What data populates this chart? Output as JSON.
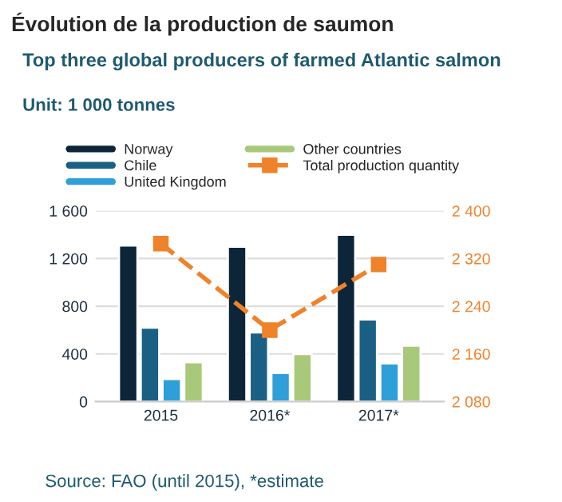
{
  "chart_data": {
    "type": "bar",
    "title": "Top three global producers of farmed Atlantic salmon",
    "subtitle": "Unit: 1 000 tonnes",
    "categories": [
      "2015",
      "2016*",
      "2017*"
    ],
    "series": [
      {
        "name": "Norway",
        "color": "#0d2538",
        "values": [
          1310,
          1300,
          1400
        ]
      },
      {
        "name": "Chile",
        "color": "#1a5f84",
        "values": [
          620,
          580,
          690
        ]
      },
      {
        "name": "United Kingdom",
        "color": "#2e9fd8",
        "values": [
          190,
          240,
          320
        ]
      },
      {
        "name": "Other countries",
        "color": "#a9c97a",
        "values": [
          330,
          400,
          470
        ]
      },
      {
        "name": "Total production quantity",
        "type": "line",
        "axis": "y2",
        "color": "#f0822a",
        "line_style": "dashed",
        "marker": "square",
        "values": [
          2345,
          2200,
          2310
        ]
      }
    ],
    "ylim": [
      0,
      1600
    ],
    "yticks": [
      {
        "value": 0,
        "label": "0"
      },
      {
        "value": 400,
        "label": "400"
      },
      {
        "value": 800,
        "label": "800"
      },
      {
        "value": 1200,
        "label": "1 200"
      },
      {
        "value": 1600,
        "label": "1 600"
      }
    ],
    "y2lim": [
      2080,
      2400
    ],
    "y2ticks": [
      {
        "value": 2080,
        "label": "2 080"
      },
      {
        "value": 2160,
        "label": "2 160"
      },
      {
        "value": 2240,
        "label": "2 240"
      },
      {
        "value": 2320,
        "label": "2 320"
      },
      {
        "value": 2400,
        "label": "2 400"
      }
    ],
    "grid": "y",
    "legend": "top",
    "annotations": [
      "Évolution de la production de saumon",
      "Source: FAO (until 2015), *estimate"
    ]
  }
}
